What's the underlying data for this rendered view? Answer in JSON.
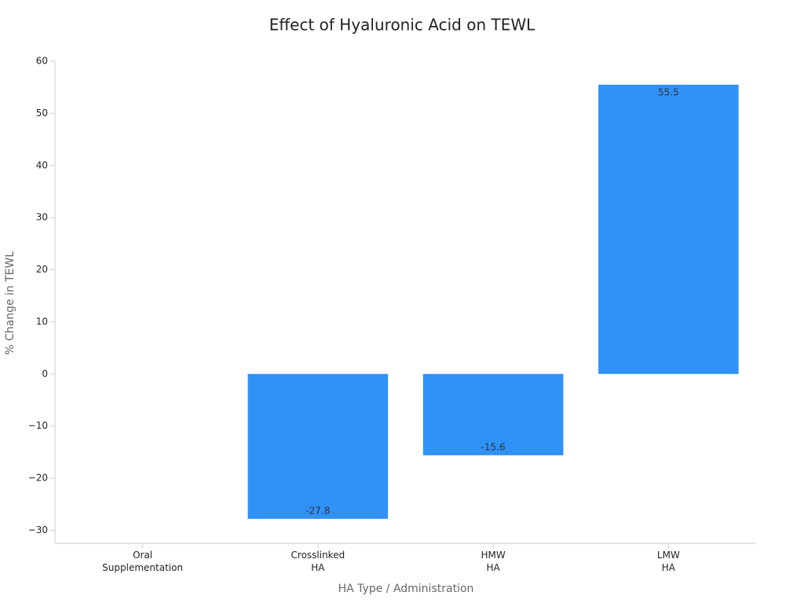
{
  "chart_data": {
    "type": "bar",
    "title": "Effect of Hyaluronic Acid on TEWL",
    "x_label": "HA Type / Administration",
    "y_label": "% Change in TEWL",
    "categories": [
      "Oral\nSupplementation",
      "Crosslinked\nHA",
      "HMW\nHA",
      "LMW\nHA"
    ],
    "values": [
      null,
      -27.8,
      -15.6,
      55.5
    ],
    "color": "#3091f7",
    "ylim": [
      -32.5,
      60
    ],
    "yticks": [
      {
        "value": -30,
        "label": "−30"
      },
      {
        "value": -20,
        "label": "−20"
      },
      {
        "value": -10,
        "label": "−10"
      },
      0,
      10,
      20,
      30,
      40,
      50,
      60
    ],
    "grid": false
  }
}
